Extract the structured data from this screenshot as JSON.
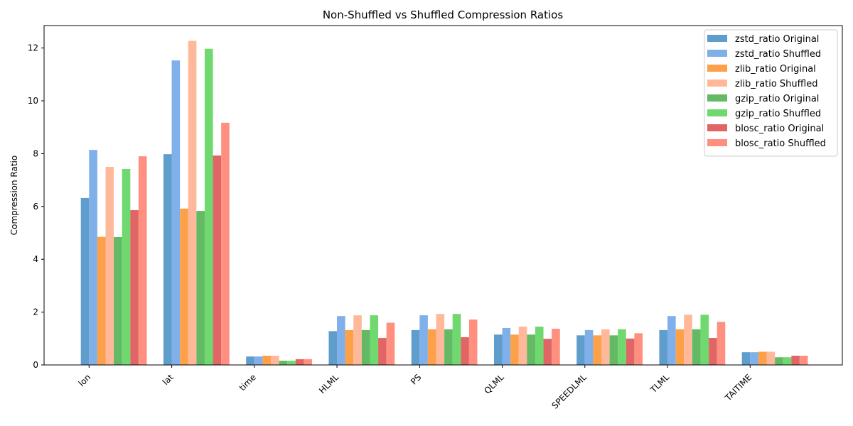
{
  "chart_data": {
    "type": "bar",
    "title": "Non-Shuffled vs Shuffled Compression Ratios",
    "xlabel": "",
    "ylabel": "Compression Ratio",
    "ylim": [
      0,
      12.85
    ],
    "yticks": [
      0,
      2,
      4,
      6,
      8,
      10,
      12
    ],
    "grid": false,
    "legend_position": "top-right",
    "categories": [
      "lon",
      "lat",
      "time",
      "HLML",
      "PS",
      "QLML",
      "SPEEDLML",
      "TLML",
      "TAITIME"
    ],
    "series": [
      {
        "name": "zstd_ratio Original",
        "color": "#5f9ecc",
        "values": [
          6.32,
          7.98,
          0.32,
          1.28,
          1.32,
          1.15,
          1.12,
          1.32,
          0.48
        ]
      },
      {
        "name": "zstd_ratio Shuffled",
        "color": "#7fb0e9",
        "values": [
          8.14,
          11.53,
          0.32,
          1.85,
          1.88,
          1.4,
          1.32,
          1.85,
          0.48
        ]
      },
      {
        "name": "zlib_ratio Original",
        "color": "#fca04a",
        "values": [
          4.85,
          5.92,
          0.35,
          1.32,
          1.35,
          1.15,
          1.12,
          1.35,
          0.5
        ]
      },
      {
        "name": "zlib_ratio Shuffled",
        "color": "#ffb99a",
        "values": [
          7.5,
          12.27,
          0.35,
          1.88,
          1.93,
          1.45,
          1.35,
          1.9,
          0.5
        ]
      },
      {
        "name": "gzip_ratio Original",
        "color": "#64b964",
        "values": [
          4.84,
          5.83,
          0.16,
          1.32,
          1.35,
          1.15,
          1.12,
          1.35,
          0.29
        ]
      },
      {
        "name": "gzip_ratio Shuffled",
        "color": "#6fd86f",
        "values": [
          7.42,
          11.97,
          0.16,
          1.88,
          1.93,
          1.45,
          1.35,
          1.9,
          0.29
        ]
      },
      {
        "name": "blosc_ratio Original",
        "color": "#e06666",
        "values": [
          5.86,
          7.93,
          0.22,
          1.02,
          1.05,
          0.99,
          1.0,
          1.02,
          0.35
        ]
      },
      {
        "name": "blosc_ratio Shuffled",
        "color": "#ff9080",
        "values": [
          7.9,
          9.17,
          0.22,
          1.6,
          1.72,
          1.37,
          1.2,
          1.63,
          0.35
        ]
      }
    ]
  }
}
